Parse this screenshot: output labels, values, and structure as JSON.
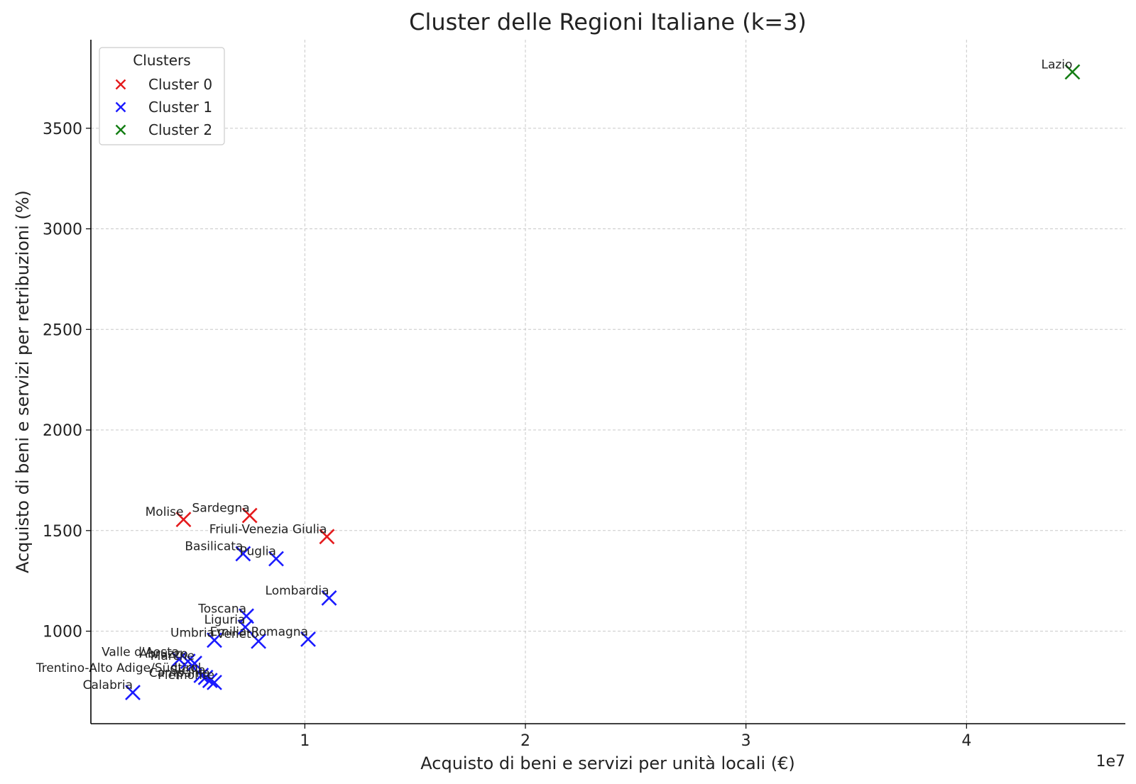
{
  "chart_data": {
    "type": "scatter",
    "title": "Cluster delle Regioni Italiane (k=3)",
    "xlabel": "Acquisto di beni e servizi per unità locali (€)",
    "ylabel": "Acquisto di beni e servizi per retribuzioni (%)",
    "x_offset_label": "1e7",
    "xlim": [
      300000,
      47200000
    ],
    "ylim": [
      540,
      3940
    ],
    "x_ticks": [
      10000000,
      20000000,
      30000000,
      40000000
    ],
    "x_tick_labels": [
      "1",
      "2",
      "3",
      "4"
    ],
    "y_ticks": [
      1000,
      1500,
      2000,
      2500,
      3000,
      3500
    ],
    "y_tick_labels": [
      "1000",
      "1500",
      "2000",
      "2500",
      "3000",
      "3500"
    ],
    "grid": true,
    "legend": {
      "title": "Clusters",
      "placement": "top-left",
      "entries": [
        {
          "label": "Cluster 0",
          "color": "#e41a1c"
        },
        {
          "label": "Cluster 1",
          "color": "#1a1aff"
        },
        {
          "label": "Cluster 2",
          "color": "#137d13"
        }
      ]
    },
    "series": [
      {
        "name": "Cluster 0",
        "color": "#e41a1c",
        "points": [
          {
            "label": "Molise",
            "x": 4500000,
            "y": 1555
          },
          {
            "label": "Sardegna",
            "x": 7500000,
            "y": 1575
          },
          {
            "label": "Friuli-Venezia Giulia",
            "x": 11000000,
            "y": 1470
          }
        ]
      },
      {
        "name": "Cluster 1",
        "color": "#1a1aff",
        "points": [
          {
            "label": "Basilicata",
            "x": 7200000,
            "y": 1385
          },
          {
            "label": "Puglia",
            "x": 8700000,
            "y": 1360
          },
          {
            "label": "Lombardia",
            "x": 11100000,
            "y": 1165
          },
          {
            "label": "Toscana",
            "x": 7350000,
            "y": 1075
          },
          {
            "label": "Liguria",
            "x": 7300000,
            "y": 1020
          },
          {
            "label": "Emilia-Romagna",
            "x": 10150000,
            "y": 960
          },
          {
            "label": "Veneto",
            "x": 7900000,
            "y": 950
          },
          {
            "label": "Umbria",
            "x": 5900000,
            "y": 955
          },
          {
            "label": "Valle d'Aosta",
            "x": 4300000,
            "y": 860
          },
          {
            "label": "Abruzzo",
            "x": 4700000,
            "y": 850
          },
          {
            "label": "Marche",
            "x": 5000000,
            "y": 840
          },
          {
            "label": "Trentino-Alto Adige/Südtirol",
            "x": 5300000,
            "y": 780
          },
          {
            "label": "Sicilia",
            "x": 5500000,
            "y": 770
          },
          {
            "label": "Campania",
            "x": 5700000,
            "y": 755
          },
          {
            "label": "Piemonte",
            "x": 5900000,
            "y": 745
          },
          {
            "label": "Calabria",
            "x": 2200000,
            "y": 695
          }
        ]
      },
      {
        "name": "Cluster 2",
        "color": "#137d13",
        "points": [
          {
            "label": "Lazio",
            "x": 44800000,
            "y": 3780
          }
        ]
      }
    ]
  }
}
